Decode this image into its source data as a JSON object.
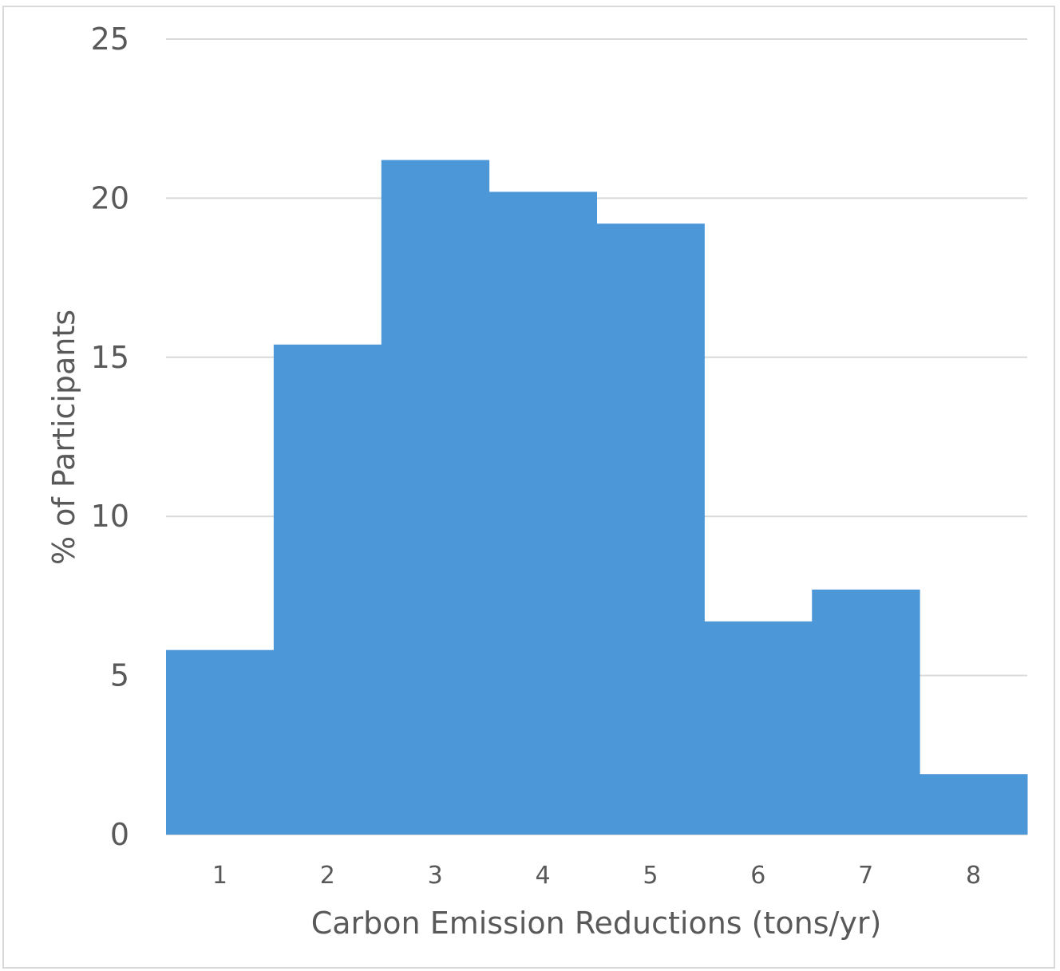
{
  "chart_data": {
    "type": "bar",
    "title": "",
    "xlabel": "Carbon Emission Reductions (tons/yr)",
    "ylabel": "% of Participants",
    "categories": [
      "1",
      "2",
      "3",
      "4",
      "5",
      "6",
      "7",
      "8"
    ],
    "values": [
      5.8,
      15.4,
      21.2,
      20.2,
      19.2,
      6.7,
      7.7,
      1.9
    ],
    "ylim": [
      0,
      25
    ],
    "yticks": [
      "0",
      "5",
      "10",
      "15",
      "20",
      "25"
    ],
    "grid": true,
    "bar_gap": 0,
    "bar_color": "#4c97d8",
    "grid_color": "#d9d9d9",
    "text_color": "#595959"
  }
}
